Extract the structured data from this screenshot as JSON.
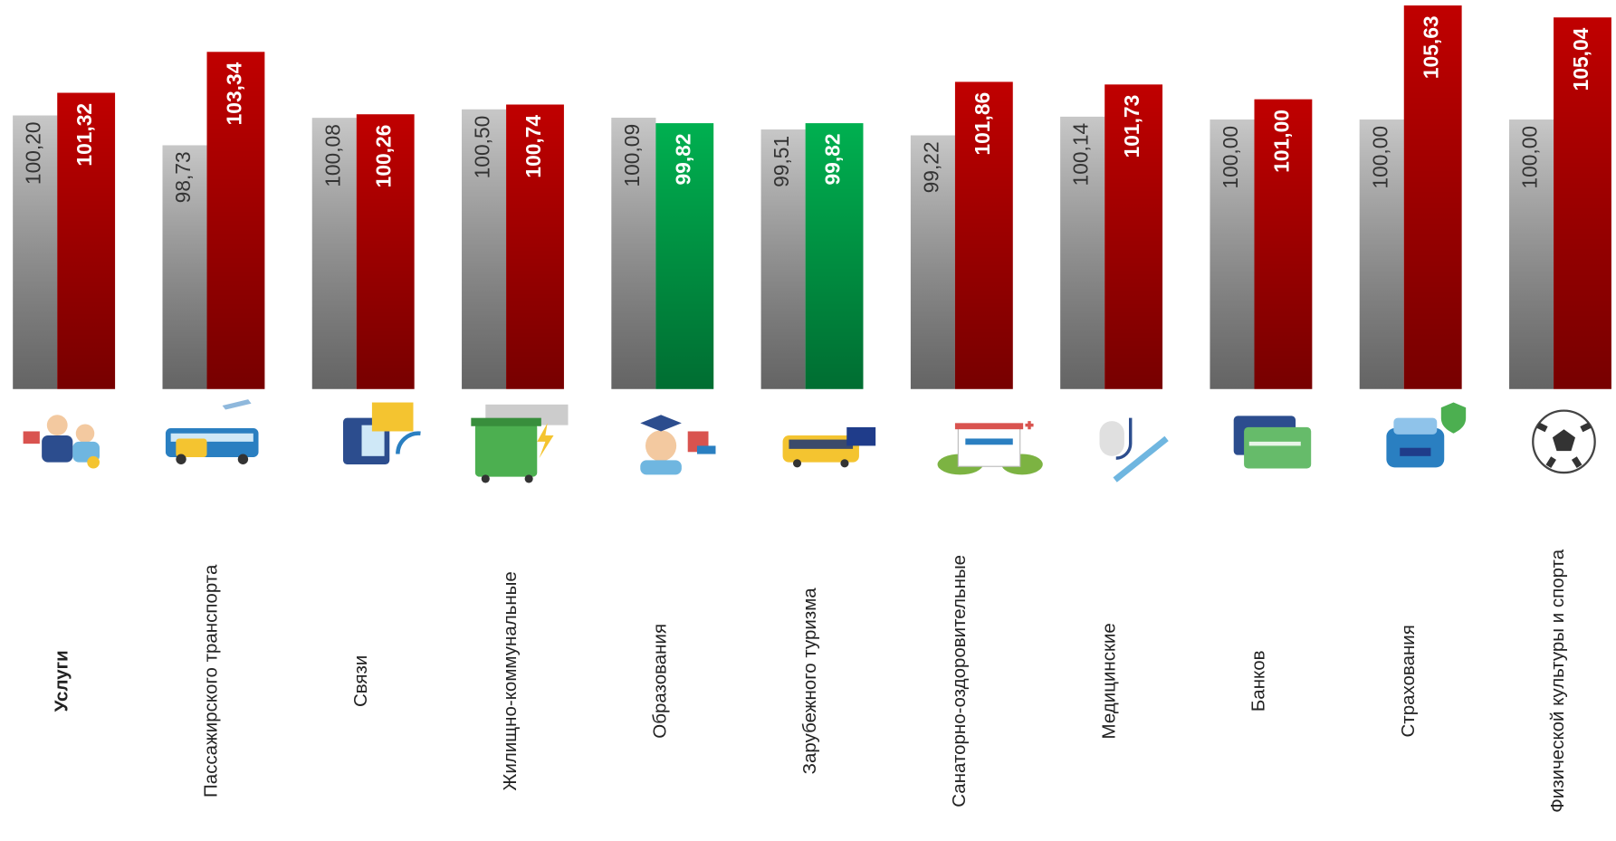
{
  "chart_data": {
    "type": "bar",
    "categories": [
      "Услуги",
      "Пассажирского транспорта",
      "Связи",
      "Жилищно-коммунальные",
      "Образования",
      "Зарубежного туризма",
      "Санаторно-оздоровительные",
      "Медицинские",
      "Банков",
      "Страхования",
      "Физической культуры и спорта"
    ],
    "series": [
      {
        "color": "#9a9a9a",
        "values": [
          100.2,
          98.73,
          100.08,
          100.5,
          100.09,
          99.51,
          99.22,
          100.14,
          100.0,
          100.0,
          100.0
        ],
        "value_labels": [
          "100,20",
          "98,73",
          "100,08",
          "100,50",
          "100,09",
          "99,51",
          "99,22",
          "100,14",
          "100,00",
          "100,00",
          "100,00"
        ]
      },
      {
        "color": "#c00000",
        "colors": [
          "#c00000",
          "#c00000",
          "#c00000",
          "#c00000",
          "#00b050",
          "#00b050",
          "#c00000",
          "#c00000",
          "#c00000",
          "#c00000",
          "#c00000"
        ],
        "values": [
          101.32,
          103.34,
          100.26,
          100.74,
          99.82,
          99.82,
          101.86,
          101.73,
          101.0,
          105.63,
          105.04
        ],
        "value_labels": [
          "101,32",
          "103,34",
          "100,26",
          "100,74",
          "99,82",
          "99,82",
          "101,86",
          "101,73",
          "101,00",
          "105,63",
          "105,04"
        ]
      }
    ],
    "ylim": [
      86.7,
      105.9
    ]
  }
}
